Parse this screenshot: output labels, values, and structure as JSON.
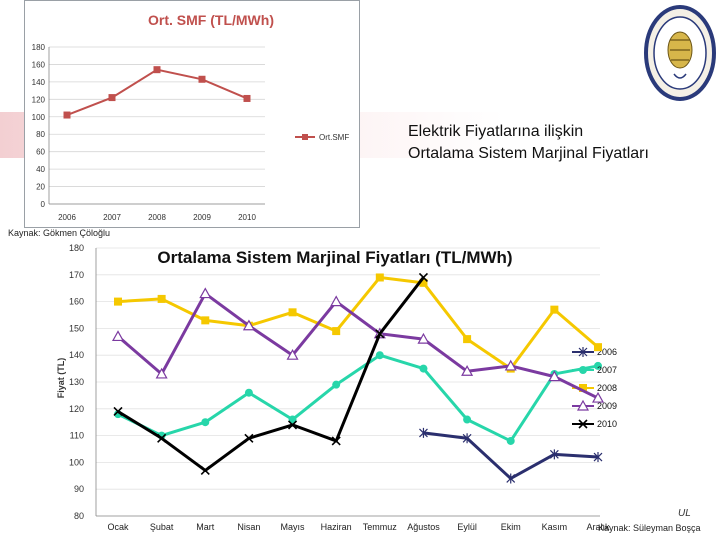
{
  "heading": {
    "line1": "Elektrik Fiyatlarına ilişkin",
    "line2": "Ortalama Sistem Marjinal Fiyatları"
  },
  "source_top": "Kaynak: Gökmen Çöloğlu",
  "source_bottom": "Kaynak: Süleyman Boşça",
  "corner_mark": "UL",
  "logo_icon": "university-seal-icon",
  "chart_data": [
    {
      "type": "line",
      "title": "Ort. SMF (TL/MWh)",
      "categories": [
        "2006",
        "2007",
        "2008",
        "2009",
        "2010"
      ],
      "series": [
        {
          "name": "Ort.SMF",
          "color": "#c0504d",
          "values": [
            102,
            122,
            154,
            143,
            121
          ]
        }
      ],
      "yticks": [
        "180",
        "160",
        "140",
        "120",
        "100",
        "80",
        "60",
        "40",
        "20",
        "0"
      ],
      "ylim": [
        0,
        180
      ],
      "grid": true,
      "legend": "right"
    },
    {
      "type": "line",
      "title": "Ortalama Sistem Marjinal Fiyatları (TL/MWh)",
      "ylabel": "Fiyat (TL)",
      "categories": [
        "Ocak",
        "Şubat",
        "Mart",
        "Nisan",
        "Mayıs",
        "Haziran",
        "Temmuz",
        "Ağustos",
        "Eylül",
        "Ekim",
        "Kasım",
        "Aralık"
      ],
      "yticks": [
        "180",
        "170",
        "160",
        "150",
        "140",
        "130",
        "120",
        "110",
        "100",
        "90",
        "80"
      ],
      "ylim": [
        80,
        180
      ],
      "grid": true,
      "legend": "right",
      "series": [
        {
          "name": "2006",
          "color": "#2b2f6e",
          "marker": "star",
          "values": [
            null,
            null,
            null,
            null,
            null,
            null,
            null,
            111,
            109,
            94,
            103,
            102
          ]
        },
        {
          "name": "2007",
          "color": "#27d6aa",
          "marker": "circle",
          "values": [
            118,
            110,
            115,
            126,
            116,
            129,
            140,
            135,
            116,
            108,
            133,
            136
          ]
        },
        {
          "name": "2008",
          "color": "#f5c800",
          "marker": "square",
          "values": [
            160,
            161,
            153,
            151,
            156,
            149,
            169,
            167,
            146,
            135,
            157,
            143
          ]
        },
        {
          "name": "2009",
          "color": "#7b3aa0",
          "marker": "triangle",
          "values": [
            147,
            133,
            163,
            151,
            140,
            160,
            148,
            146,
            134,
            136,
            132,
            124
          ]
        },
        {
          "name": "2010",
          "color": "#000000",
          "marker": "x",
          "values": [
            119,
            109,
            97,
            109,
            114,
            108,
            148,
            169,
            null,
            null,
            null,
            null
          ]
        }
      ]
    }
  ]
}
